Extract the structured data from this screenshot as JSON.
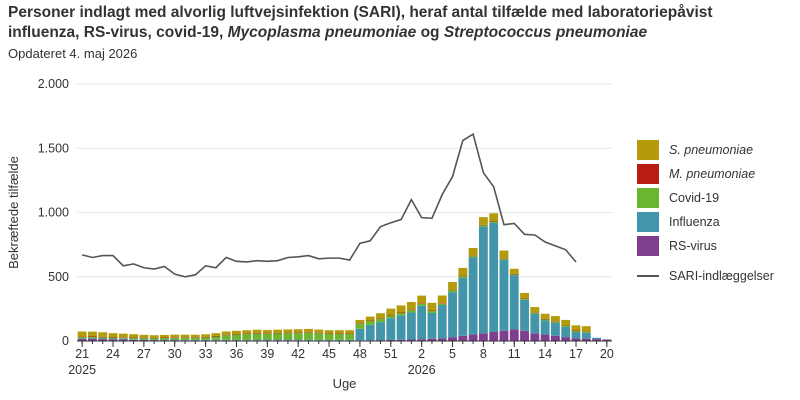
{
  "title_parts": [
    {
      "text": "Personer indlagt med alvorlig luftvejsinfektion (SARI), heraf antal tilfælde med laboratoriepåvist influenza, RS-virus, covid-19, ",
      "italic": false
    },
    {
      "text": "Mycoplasma pneumoniae",
      "italic": true
    },
    {
      "text": " og ",
      "italic": false
    },
    {
      "text": "Streptococcus pneumoniae",
      "italic": true
    }
  ],
  "updated": "Opdateret 4. maj 2026",
  "colors": {
    "s_pneumoniae": "#b39b0b",
    "m_pneumoniae": "#b81d13",
    "covid": "#6bb52f",
    "influenza": "#4396aa",
    "rsv": "#7f3f8f",
    "sari_line": "#555555"
  },
  "chart_data": {
    "type": "bar",
    "stacked": true,
    "ylabel": "Bekræftede tilfælde",
    "xlabel": "Uge",
    "ylim": [
      0,
      2000
    ],
    "yticks": [
      0,
      500,
      1000,
      1500,
      2000
    ],
    "ytick_labels": [
      "0",
      "500",
      "1.000",
      "1.500",
      "2.000"
    ],
    "xtick_labels": [
      "21",
      "24",
      "27",
      "30",
      "33",
      "36",
      "39",
      "42",
      "45",
      "48",
      "51",
      "2",
      "5",
      "8",
      "11",
      "14",
      "17",
      "20"
    ],
    "year_labels": [
      {
        "week": "21",
        "year": "2025"
      },
      {
        "week": "2",
        "year": "2026"
      }
    ],
    "grid": true,
    "legend_position": "right",
    "legend": [
      {
        "label": "S. pneumoniae",
        "italic": true,
        "key": "s_pneumoniae",
        "kind": "bar"
      },
      {
        "label": "M. pneumoniae",
        "italic": true,
        "key": "m_pneumoniae",
        "kind": "bar"
      },
      {
        "label": "Covid-19",
        "italic": false,
        "key": "covid",
        "kind": "bar"
      },
      {
        "label": "Influenza",
        "italic": false,
        "key": "influenza",
        "kind": "bar"
      },
      {
        "label": "RS-virus",
        "italic": false,
        "key": "rsv",
        "kind": "bar"
      },
      {
        "label": "SARI-indlæggelser",
        "italic": false,
        "key": "sari_line",
        "kind": "line"
      }
    ],
    "x": [
      "21",
      "22",
      "23",
      "24",
      "25",
      "26",
      "27",
      "28",
      "29",
      "30",
      "31",
      "32",
      "33",
      "34",
      "35",
      "36",
      "37",
      "38",
      "39",
      "40",
      "41",
      "42",
      "43",
      "44",
      "45",
      "46",
      "47",
      "48",
      "49",
      "50",
      "51",
      "52",
      "1",
      "2",
      "3",
      "4",
      "5",
      "6",
      "7",
      "8",
      "9",
      "10",
      "11",
      "12",
      "13",
      "14",
      "15",
      "16",
      "17",
      "18",
      "19",
      "20"
    ],
    "series": [
      {
        "key": "rsv",
        "values": [
          15,
          18,
          15,
          14,
          12,
          10,
          8,
          7,
          7,
          7,
          6,
          6,
          6,
          6,
          6,
          6,
          6,
          6,
          6,
          6,
          6,
          6,
          5,
          5,
          5,
          5,
          5,
          5,
          6,
          7,
          8,
          10,
          12,
          14,
          18,
          20,
          30,
          40,
          50,
          60,
          70,
          80,
          90,
          80,
          60,
          50,
          40,
          30,
          20,
          18,
          15,
          12
        ]
      },
      {
        "key": "influenza",
        "values": [
          5,
          5,
          5,
          5,
          5,
          4,
          4,
          4,
          4,
          4,
          4,
          4,
          4,
          4,
          4,
          4,
          4,
          5,
          5,
          5,
          5,
          5,
          5,
          5,
          5,
          5,
          5,
          90,
          120,
          140,
          170,
          190,
          210,
          260,
          200,
          260,
          350,
          450,
          600,
          830,
          850,
          550,
          420,
          240,
          150,
          110,
          100,
          80,
          50,
          45,
          10,
          0
        ]
      },
      {
        "key": "covid",
        "values": [
          10,
          8,
          8,
          8,
          8,
          10,
          10,
          10,
          12,
          14,
          15,
          15,
          18,
          25,
          35,
          40,
          45,
          48,
          45,
          48,
          50,
          52,
          55,
          50,
          45,
          45,
          45,
          40,
          30,
          25,
          20,
          18,
          18,
          15,
          15,
          10,
          15,
          15,
          10,
          10,
          10,
          10,
          8,
          10,
          10,
          8,
          10,
          10,
          8,
          8,
          0,
          0
        ]
      },
      {
        "key": "m_pneumoniae",
        "values": [
          4,
          4,
          4,
          4,
          4,
          4,
          4,
          4,
          4,
          4,
          4,
          4,
          4,
          4,
          4,
          4,
          4,
          4,
          4,
          4,
          4,
          4,
          4,
          4,
          4,
          4,
          4,
          4,
          4,
          4,
          4,
          4,
          4,
          4,
          4,
          4,
          4,
          4,
          4,
          4,
          4,
          4,
          4,
          4,
          4,
          4,
          4,
          4,
          4,
          4,
          0,
          0
        ]
      },
      {
        "key": "s_pneumoniae",
        "values": [
          40,
          38,
          36,
          30,
          28,
          25,
          22,
          20,
          20,
          20,
          20,
          20,
          20,
          22,
          25,
          25,
          25,
          25,
          25,
          25,
          25,
          25,
          25,
          25,
          25,
          25,
          25,
          25,
          30,
          40,
          50,
          55,
          60,
          60,
          60,
          60,
          60,
          60,
          60,
          60,
          60,
          60,
          40,
          40,
          40,
          40,
          40,
          40,
          40,
          40,
          0,
          0
        ]
      }
    ],
    "line": {
      "name": "SARI-indlæggelser",
      "key": "sari_line",
      "values": [
        670,
        650,
        665,
        665,
        585,
        600,
        570,
        560,
        580,
        520,
        500,
        515,
        585,
        570,
        650,
        620,
        615,
        625,
        620,
        625,
        650,
        655,
        665,
        640,
        645,
        645,
        630,
        760,
        780,
        890,
        920,
        945,
        1100,
        960,
        955,
        1140,
        1280,
        1560,
        1610,
        1310,
        1200,
        905,
        915,
        830,
        825,
        770,
        740,
        710,
        615,
        null,
        null,
        null
      ]
    }
  }
}
